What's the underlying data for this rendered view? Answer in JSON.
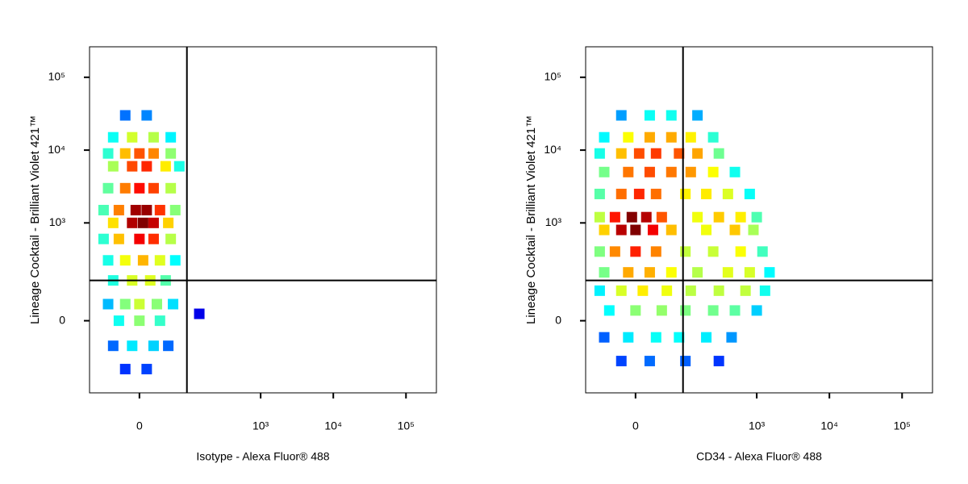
{
  "chart_data": [
    {
      "type": "scatter",
      "xlabel": "Isotype - Alexa Fluor® 488",
      "ylabel": "Lineage Cocktail - Brilliant Violet 421™",
      "xscale": "biexponential",
      "yscale": "biexponential",
      "xlim": [
        -100,
        262144
      ],
      "ylim": [
        -440,
        262144
      ],
      "xticks": [
        0,
        {
          "value": 1000,
          "label": "10³"
        },
        {
          "value": 10000,
          "label": "10⁴"
        },
        {
          "value": 100000,
          "label": "10⁵"
        }
      ],
      "yticks": [
        0,
        {
          "value": 1000,
          "label": "10³"
        },
        {
          "value": 10000,
          "label": "10⁴"
        },
        {
          "value": 100000,
          "label": "10⁵"
        }
      ],
      "gate": {
        "x": 92,
        "y": 150
      },
      "x": [
        -20,
        10,
        -40,
        -10,
        20,
        50,
        -50,
        -20,
        0,
        20,
        50,
        -40,
        -10,
        10,
        40,
        70,
        -50,
        -20,
        0,
        20,
        50,
        -60,
        -30,
        -5,
        10,
        30,
        60,
        -40,
        -10,
        5,
        20,
        45,
        -60,
        -30,
        0,
        20,
        50,
        -50,
        -20,
        5,
        30,
        60,
        -40,
        -10,
        15,
        40,
        -50,
        -20,
        0,
        25,
        55,
        -30,
        0,
        30,
        -40,
        -10,
        20,
        45,
        -20,
        10,
        140
      ],
      "y": [
        30000,
        30000,
        15000,
        15000,
        15000,
        15000,
        9000,
        9000,
        9000,
        9000,
        9000,
        6000,
        6000,
        6000,
        6000,
        6000,
        3000,
        3000,
        3000,
        3000,
        3000,
        1500,
        1500,
        1500,
        1500,
        1500,
        1500,
        1000,
        1000,
        1000,
        1000,
        1000,
        600,
        600,
        600,
        600,
        600,
        300,
        300,
        300,
        300,
        300,
        150,
        150,
        150,
        150,
        50,
        50,
        50,
        50,
        50,
        0,
        0,
        0,
        -80,
        -80,
        -80,
        -80,
        -200,
        -200,
        20
      ]
    },
    {
      "type": "scatter",
      "xlabel": "CD34 - Alexa Fluor® 488",
      "ylabel": "Lineage Cocktail - Brilliant Violet 421™",
      "xscale": "biexponential",
      "yscale": "biexponential",
      "xlim": [
        -100,
        262144
      ],
      "ylim": [
        -440,
        262144
      ],
      "xticks": [
        0,
        {
          "value": 1000,
          "label": "10³"
        },
        {
          "value": 10000,
          "label": "10⁴"
        },
        {
          "value": 100000,
          "label": "10⁵"
        }
      ],
      "yticks": [
        0,
        {
          "value": 1000,
          "label": "10³"
        },
        {
          "value": 10000,
          "label": "10⁴"
        },
        {
          "value": 100000,
          "label": "10⁵"
        }
      ],
      "gate": {
        "x": 92,
        "y": 150
      },
      "x": [
        -20,
        20,
        60,
        150,
        -50,
        -10,
        20,
        60,
        120,
        250,
        -60,
        -20,
        5,
        30,
        80,
        150,
        300,
        -50,
        -10,
        20,
        60,
        120,
        250,
        500,
        -60,
        -20,
        5,
        30,
        100,
        200,
        400,
        800,
        -60,
        -30,
        -5,
        15,
        40,
        150,
        300,
        600,
        1000,
        -50,
        -20,
        0,
        25,
        60,
        200,
        500,
        900,
        -60,
        -30,
        0,
        30,
        100,
        250,
        600,
        1200,
        -50,
        -10,
        20,
        60,
        150,
        400,
        800,
        1500,
        -60,
        -20,
        10,
        50,
        120,
        300,
        700,
        1300,
        -40,
        0,
        40,
        100,
        250,
        500,
        1000,
        -50,
        -10,
        30,
        80,
        200,
        450,
        -20,
        20,
        100,
        300
      ],
      "y": [
        30000,
        30000,
        30000,
        30000,
        15000,
        15000,
        15000,
        15000,
        15000,
        15000,
        9000,
        9000,
        9000,
        9000,
        9000,
        9000,
        9000,
        5000,
        5000,
        5000,
        5000,
        5000,
        5000,
        5000,
        2500,
        2500,
        2500,
        2500,
        2500,
        2500,
        2500,
        2500,
        1200,
        1200,
        1200,
        1200,
        1200,
        1200,
        1200,
        1200,
        1200,
        800,
        800,
        800,
        800,
        800,
        800,
        800,
        800,
        400,
        400,
        400,
        400,
        400,
        400,
        400,
        400,
        200,
        200,
        200,
        200,
        200,
        200,
        200,
        200,
        100,
        100,
        100,
        100,
        100,
        100,
        100,
        100,
        30,
        30,
        30,
        30,
        30,
        30,
        30,
        -50,
        -50,
        -50,
        -50,
        -50,
        -50,
        -150,
        -150,
        -150,
        -150
      ]
    }
  ]
}
